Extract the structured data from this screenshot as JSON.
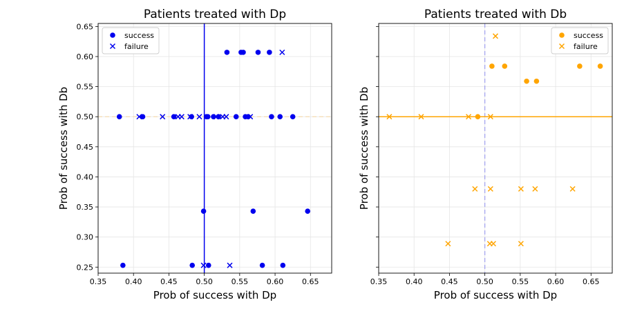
{
  "chart_data": [
    {
      "type": "scatter",
      "title": "Patients treated with Dp",
      "xlabel": "Prob of success with Dp",
      "ylabel": "Prob of success with Db",
      "xlim": [
        0.35,
        0.68
      ],
      "ylim": [
        0.24,
        0.655
      ],
      "xticks": [
        0.35,
        0.4,
        0.45,
        0.5,
        0.55,
        0.6,
        0.65
      ],
      "yticks": [
        0.25,
        0.3,
        0.35,
        0.4,
        0.45,
        0.5,
        0.55,
        0.6,
        0.65
      ],
      "tick_labels_x": [
        "0.35",
        "0.40",
        "0.45",
        "0.50",
        "0.55",
        "0.60",
        "0.65"
      ],
      "tick_labels_y": [
        "0.25",
        "0.30",
        "0.35",
        "0.40",
        "0.45",
        "0.50",
        "0.55",
        "0.60",
        "0.65"
      ],
      "grid": true,
      "legend": "top-left",
      "color": "#0000ee",
      "ref_lines": {
        "vertical": {
          "x": 0.5,
          "style": "solid",
          "color": "#0000ee"
        },
        "horizontal": {
          "y": 0.5,
          "style": "dashed",
          "color": "#f5d9a8"
        }
      },
      "series": [
        {
          "name": "success",
          "marker": "circle",
          "points": [
            [
              0.38,
              0.5
            ],
            [
              0.413,
              0.5
            ],
            [
              0.457,
              0.5
            ],
            [
              0.482,
              0.5
            ],
            [
              0.503,
              0.5
            ],
            [
              0.505,
              0.5
            ],
            [
              0.513,
              0.5
            ],
            [
              0.52,
              0.5
            ],
            [
              0.545,
              0.5
            ],
            [
              0.558,
              0.5
            ],
            [
              0.562,
              0.5
            ],
            [
              0.595,
              0.5
            ],
            [
              0.607,
              0.5
            ],
            [
              0.625,
              0.5
            ],
            [
              0.532,
              0.607
            ],
            [
              0.552,
              0.607
            ],
            [
              0.555,
              0.607
            ],
            [
              0.576,
              0.607
            ],
            [
              0.592,
              0.607
            ],
            [
              0.499,
              0.343
            ],
            [
              0.569,
              0.343
            ],
            [
              0.646,
              0.343
            ],
            [
              0.385,
              0.253
            ],
            [
              0.483,
              0.253
            ],
            [
              0.506,
              0.253
            ],
            [
              0.582,
              0.253
            ],
            [
              0.611,
              0.253
            ]
          ]
        },
        {
          "name": "failure",
          "marker": "x",
          "points": [
            [
              0.408,
              0.5
            ],
            [
              0.441,
              0.5
            ],
            [
              0.463,
              0.5
            ],
            [
              0.468,
              0.5
            ],
            [
              0.48,
              0.5
            ],
            [
              0.493,
              0.5
            ],
            [
              0.517,
              0.5
            ],
            [
              0.526,
              0.5
            ],
            [
              0.531,
              0.5
            ],
            [
              0.565,
              0.5
            ],
            [
              0.61,
              0.607
            ],
            [
              0.499,
              0.253
            ],
            [
              0.536,
              0.253
            ]
          ]
        }
      ]
    },
    {
      "type": "scatter",
      "title": "Patients treated with Db",
      "xlabel": "Prob of success with Dp",
      "ylabel": "Prob of success with Db",
      "xlim": [
        0.35,
        0.68
      ],
      "ylim": [
        0.24,
        0.655
      ],
      "xticks": [
        0.35,
        0.4,
        0.45,
        0.5,
        0.55,
        0.6,
        0.65
      ],
      "yticks": [
        0.25,
        0.3,
        0.35,
        0.4,
        0.45,
        0.5,
        0.55,
        0.6,
        0.65
      ],
      "tick_labels_x": [
        "0.35",
        "0.40",
        "0.45",
        "0.50",
        "0.55",
        "0.60",
        "0.65"
      ],
      "tick_labels_y": [],
      "grid": true,
      "legend": "top-right",
      "color": "#ffa500",
      "ref_lines": {
        "vertical": {
          "x": 0.5,
          "style": "dashed",
          "color": "#a0a0ee"
        },
        "horizontal": {
          "y": 0.5,
          "style": "solid",
          "color": "#ffa500"
        }
      },
      "series": [
        {
          "name": "success",
          "marker": "circle",
          "points": [
            [
              0.49,
              0.5
            ],
            [
              0.51,
              0.584
            ],
            [
              0.528,
              0.584
            ],
            [
              0.634,
              0.584
            ],
            [
              0.663,
              0.584
            ],
            [
              0.559,
              0.559
            ],
            [
              0.573,
              0.559
            ]
          ]
        },
        {
          "name": "failure",
          "marker": "x",
          "points": [
            [
              0.365,
              0.5
            ],
            [
              0.41,
              0.5
            ],
            [
              0.477,
              0.5
            ],
            [
              0.508,
              0.5
            ],
            [
              0.515,
              0.634
            ],
            [
              0.486,
              0.38
            ],
            [
              0.508,
              0.38
            ],
            [
              0.551,
              0.38
            ],
            [
              0.571,
              0.38
            ],
            [
              0.624,
              0.38
            ],
            [
              0.448,
              0.289
            ],
            [
              0.507,
              0.289
            ],
            [
              0.512,
              0.289
            ],
            [
              0.551,
              0.289
            ]
          ]
        }
      ]
    }
  ]
}
